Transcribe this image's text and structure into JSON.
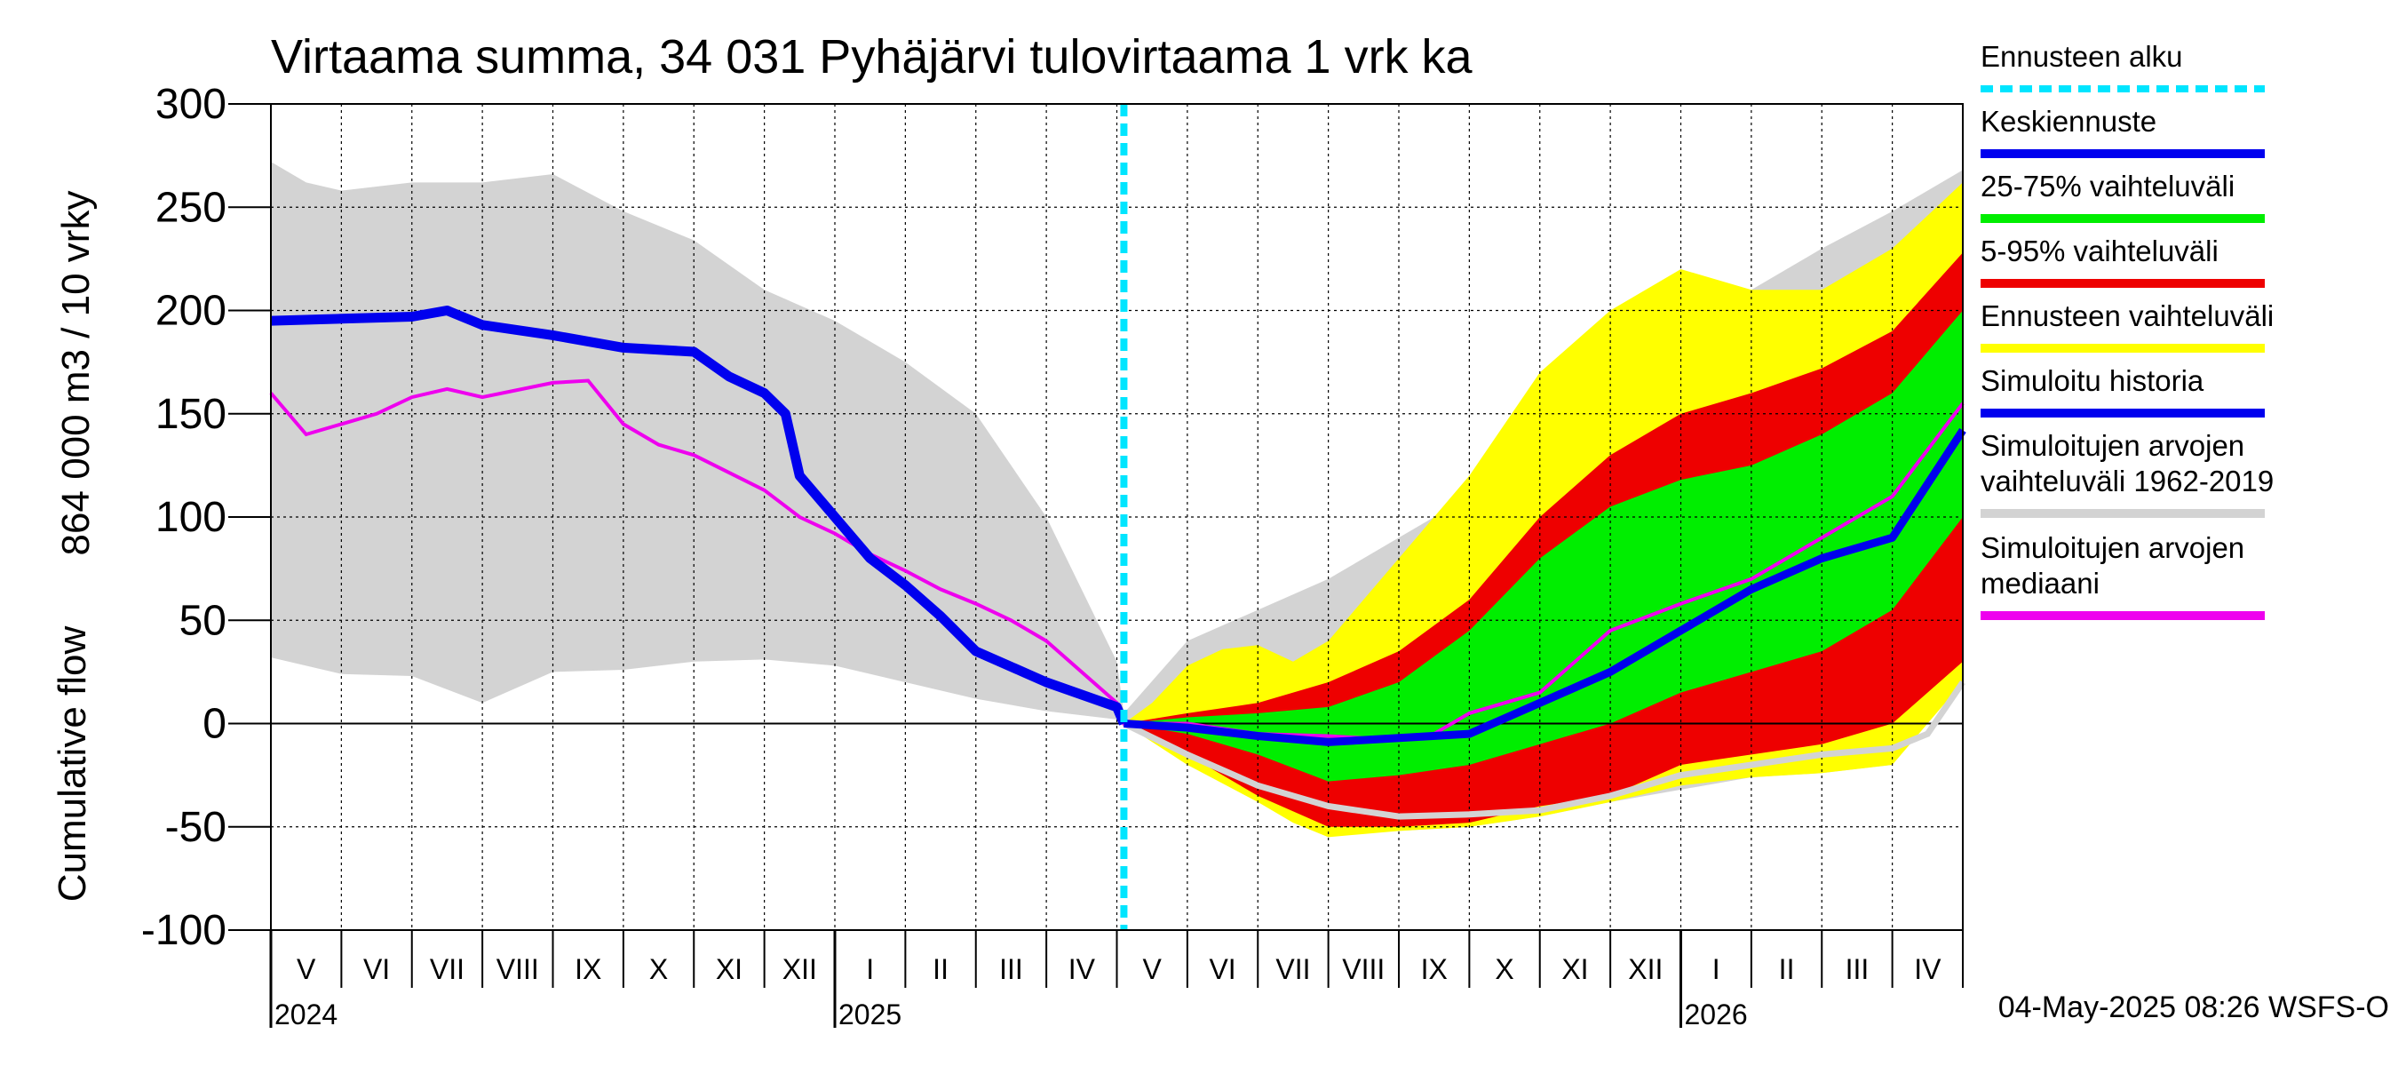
{
  "chart_data": {
    "type": "area",
    "title": "Virtaama summa, 34 031 Pyhäjärvi tulovirtaama 1 vrk ka",
    "ylabel_line1": "864 000 m3 / 10 vrky",
    "ylabel_line2": "Cumulative flow",
    "ylim": [
      -100,
      300
    ],
    "yticks": [
      -100,
      -50,
      0,
      50,
      100,
      150,
      200,
      250,
      300
    ],
    "ytick_labels": [
      "-100",
      "-50",
      "0",
      "50",
      "100",
      "150",
      "200",
      "250",
      "300"
    ],
    "x_range_months": [
      0,
      24
    ],
    "forecast_start_month": 12.1,
    "month_labels": [
      "V",
      "VI",
      "VII",
      "VIII",
      "IX",
      "X",
      "XI",
      "XII",
      "I",
      "II",
      "III",
      "IV",
      "V",
      "VI",
      "VII",
      "VIII",
      "IX",
      "X",
      "XI",
      "XII",
      "I",
      "II",
      "III",
      "IV"
    ],
    "years": [
      {
        "label": "2024",
        "month": 0
      },
      {
        "label": "2025",
        "month": 8
      },
      {
        "label": "2026",
        "month": 20
      }
    ],
    "timestamp": "04-May-2025 08:26 WSFS-O",
    "legend": [
      {
        "key": "forecast_start",
        "label": "Ennusteen alku",
        "color": "#00e5ff",
        "style": "dashed"
      },
      {
        "key": "mean_forecast",
        "label": "Keskiennuste",
        "color": "#0000ee",
        "style": "line"
      },
      {
        "key": "band_25_75",
        "label": "25-75% vaihteluväli",
        "color": "#00ee00",
        "style": "line"
      },
      {
        "key": "band_5_95",
        "label": "5-95% vaihteluväli",
        "color": "#ee0000",
        "style": "line"
      },
      {
        "key": "band_full",
        "label": "Ennusteen vaihteluväli",
        "color": "#ffff00",
        "style": "line"
      },
      {
        "key": "sim_history",
        "label": "Simuloitu historia",
        "color": "#0000ee",
        "style": "line"
      },
      {
        "key": "hist_range",
        "label": "Simuloitujen arvojen vaihteluväli 1962-2019",
        "lines": [
          "Simuloitujen arvojen",
          "vaihteluväli 1962-2019"
        ],
        "color": "#d3d3d3",
        "style": "line"
      },
      {
        "key": "hist_median",
        "label": "Simuloitujen arvojen mediaani",
        "lines": [
          "Simuloitujen arvojen",
          "mediaani"
        ],
        "color": "#ee00ee",
        "style": "line"
      }
    ],
    "colors": {
      "hist_range": "#d3d3d3",
      "band_full": "#ffff00",
      "band_5_95": "#ee0000",
      "band_25_75": "#00ee00",
      "mean_forecast": "#0000ee",
      "sim_history": "#0000ee",
      "hist_median": "#ee00ee",
      "forecast_start": "#00e5ff",
      "light_line": "#d3d3d3",
      "grid": "#000000"
    },
    "hist_range_upper": [
      [
        0,
        272
      ],
      [
        0.5,
        262
      ],
      [
        1,
        258
      ],
      [
        2,
        262
      ],
      [
        3,
        262
      ],
      [
        4,
        266
      ],
      [
        5,
        248
      ],
      [
        6,
        234
      ],
      [
        7,
        210
      ],
      [
        8,
        195
      ],
      [
        9,
        175
      ],
      [
        10,
        150
      ],
      [
        11,
        100
      ],
      [
        12,
        30
      ],
      [
        12.1,
        5
      ],
      [
        13,
        40
      ],
      [
        14,
        55
      ],
      [
        15,
        70
      ],
      [
        16,
        90
      ],
      [
        17,
        110
      ],
      [
        18,
        135
      ],
      [
        19,
        155
      ],
      [
        20,
        185
      ],
      [
        21,
        210
      ],
      [
        22,
        230
      ],
      [
        23,
        248
      ],
      [
        24,
        268
      ]
    ],
    "hist_range_lower": [
      [
        0,
        32
      ],
      [
        1,
        24
      ],
      [
        2,
        23
      ],
      [
        3,
        10
      ],
      [
        4,
        25
      ],
      [
        5,
        26
      ],
      [
        6,
        30
      ],
      [
        7,
        31
      ],
      [
        8,
        28
      ],
      [
        9,
        20
      ],
      [
        10,
        12
      ],
      [
        11,
        6
      ],
      [
        12,
        2
      ],
      [
        12.1,
        0
      ],
      [
        13,
        -15
      ],
      [
        14,
        -35
      ],
      [
        15,
        -50
      ],
      [
        16,
        -52
      ],
      [
        17,
        -50
      ],
      [
        18,
        -45
      ],
      [
        19,
        -38
      ],
      [
        20,
        -32
      ],
      [
        21,
        -26
      ],
      [
        22,
        -24
      ],
      [
        23,
        -20
      ],
      [
        24,
        25
      ]
    ],
    "band_full_upper": [
      [
        12.1,
        0
      ],
      [
        12.5,
        10
      ],
      [
        13,
        28
      ],
      [
        13.5,
        36
      ],
      [
        14,
        38
      ],
      [
        14.5,
        30
      ],
      [
        15,
        40
      ],
      [
        16,
        80
      ],
      [
        17,
        120
      ],
      [
        18,
        170
      ],
      [
        19,
        200
      ],
      [
        20,
        220
      ],
      [
        21,
        210
      ],
      [
        22,
        210
      ],
      [
        23,
        230
      ],
      [
        24,
        262
      ]
    ],
    "band_full_lower": [
      [
        12.1,
        0
      ],
      [
        13,
        -20
      ],
      [
        14,
        -38
      ],
      [
        14.5,
        -48
      ],
      [
        15,
        -55
      ],
      [
        16,
        -52
      ],
      [
        17,
        -50
      ],
      [
        18,
        -45
      ],
      [
        19,
        -38
      ],
      [
        20,
        -30
      ],
      [
        21,
        -26
      ],
      [
        22,
        -24
      ],
      [
        23,
        -20
      ],
      [
        24,
        20
      ]
    ],
    "band_5_95_upper": [
      [
        12.1,
        0
      ],
      [
        13,
        5
      ],
      [
        14,
        10
      ],
      [
        15,
        20
      ],
      [
        16,
        35
      ],
      [
        17,
        60
      ],
      [
        18,
        100
      ],
      [
        19,
        130
      ],
      [
        20,
        150
      ],
      [
        21,
        160
      ],
      [
        22,
        172
      ],
      [
        23,
        190
      ],
      [
        24,
        228
      ]
    ],
    "band_5_95_lower": [
      [
        12.1,
        0
      ],
      [
        13,
        -15
      ],
      [
        14,
        -35
      ],
      [
        15,
        -50
      ],
      [
        16,
        -50
      ],
      [
        17,
        -48
      ],
      [
        18,
        -40
      ],
      [
        19,
        -35
      ],
      [
        20,
        -20
      ],
      [
        21,
        -15
      ],
      [
        22,
        -10
      ],
      [
        23,
        0
      ],
      [
        24,
        30
      ]
    ],
    "band_25_75_upper": [
      [
        12.1,
        0
      ],
      [
        13,
        3
      ],
      [
        14,
        5
      ],
      [
        15,
        8
      ],
      [
        16,
        20
      ],
      [
        17,
        45
      ],
      [
        18,
        80
      ],
      [
        19,
        105
      ],
      [
        20,
        118
      ],
      [
        21,
        125
      ],
      [
        22,
        140
      ],
      [
        23,
        160
      ],
      [
        24,
        200
      ]
    ],
    "band_25_75_lower": [
      [
        12.1,
        0
      ],
      [
        13,
        -5
      ],
      [
        14,
        -15
      ],
      [
        15,
        -28
      ],
      [
        16,
        -25
      ],
      [
        17,
        -20
      ],
      [
        18,
        -10
      ],
      [
        19,
        0
      ],
      [
        20,
        15
      ],
      [
        21,
        25
      ],
      [
        22,
        35
      ],
      [
        23,
        55
      ],
      [
        24,
        100
      ]
    ],
    "mean_forecast": [
      [
        12.1,
        0
      ],
      [
        13,
        -2
      ],
      [
        14,
        -6
      ],
      [
        15,
        -9
      ],
      [
        16,
        -7
      ],
      [
        17,
        -5
      ],
      [
        18,
        10
      ],
      [
        19,
        25
      ],
      [
        20,
        45
      ],
      [
        21,
        65
      ],
      [
        22,
        80
      ],
      [
        23,
        90
      ],
      [
        24,
        142
      ]
    ],
    "light_line": [
      [
        12.1,
        0
      ],
      [
        13,
        -15
      ],
      [
        14,
        -30
      ],
      [
        15,
        -40
      ],
      [
        16,
        -45
      ],
      [
        17,
        -44
      ],
      [
        18,
        -42
      ],
      [
        19,
        -35
      ],
      [
        20,
        -25
      ],
      [
        21,
        -20
      ],
      [
        22,
        -15
      ],
      [
        23,
        -12
      ],
      [
        23.5,
        -5
      ],
      [
        24,
        20
      ]
    ],
    "sim_history": [
      [
        0,
        195
      ],
      [
        1,
        196
      ],
      [
        2,
        197
      ],
      [
        2.5,
        200
      ],
      [
        3,
        193
      ],
      [
        4,
        188
      ],
      [
        5,
        182
      ],
      [
        6,
        180
      ],
      [
        6.5,
        168
      ],
      [
        7,
        160
      ],
      [
        7.3,
        150
      ],
      [
        7.5,
        120
      ],
      [
        8,
        100
      ],
      [
        8.5,
        80
      ],
      [
        9,
        67
      ],
      [
        9.5,
        52
      ],
      [
        10,
        35
      ],
      [
        11,
        20
      ],
      [
        12,
        8
      ],
      [
        12.1,
        0
      ]
    ],
    "hist_median": [
      [
        0,
        160
      ],
      [
        0.5,
        140
      ],
      [
        1,
        145
      ],
      [
        1.5,
        150
      ],
      [
        2,
        158
      ],
      [
        2.5,
        162
      ],
      [
        3,
        158
      ],
      [
        4,
        165
      ],
      [
        4.5,
        166
      ],
      [
        5,
        145
      ],
      [
        5.5,
        135
      ],
      [
        6,
        130
      ],
      [
        7,
        113
      ],
      [
        7.5,
        100
      ],
      [
        8,
        92
      ],
      [
        8.5,
        82
      ],
      [
        9,
        74
      ],
      [
        9.5,
        65
      ],
      [
        10,
        58
      ],
      [
        10.5,
        50
      ],
      [
        11,
        40
      ],
      [
        11.5,
        25
      ],
      [
        12,
        10
      ],
      [
        12.1,
        0
      ],
      [
        13,
        0
      ],
      [
        14,
        -5
      ],
      [
        15,
        -6
      ],
      [
        16,
        -8
      ],
      [
        16.5,
        -5
      ],
      [
        17,
        5
      ],
      [
        18,
        15
      ],
      [
        19,
        45
      ],
      [
        20,
        58
      ],
      [
        21,
        70
      ],
      [
        22,
        90
      ],
      [
        23,
        110
      ],
      [
        24,
        155
      ]
    ]
  }
}
